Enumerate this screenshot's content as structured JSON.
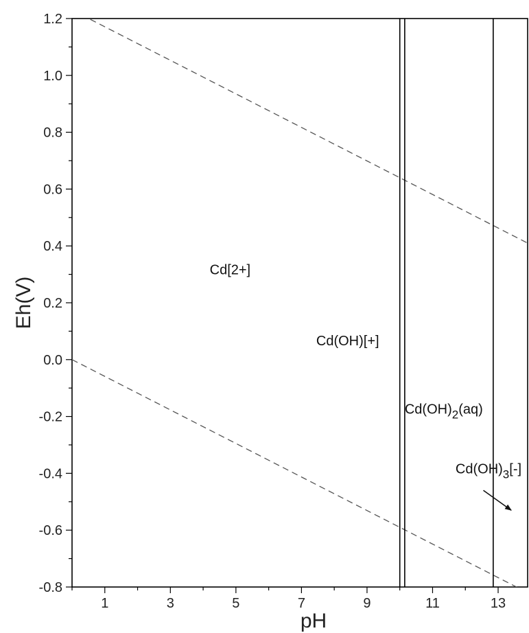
{
  "chart_data": {
    "type": "line",
    "title": "",
    "xlabel": "pH",
    "ylabel": "Eh(V)",
    "xlim": [
      0,
      13.9
    ],
    "ylim": [
      -0.8,
      1.2
    ],
    "xticks": [
      1,
      3,
      5,
      7,
      9,
      11,
      13
    ],
    "yticks": [
      1.2,
      1.0,
      0.8,
      0.6,
      0.4,
      0.2,
      0.0,
      -0.2,
      -0.4,
      -0.6,
      -0.8
    ],
    "ytick_labels": [
      "1.2",
      "1.0",
      "0.8",
      "0.6",
      "0.4",
      "0.2",
      "0.0",
      "-0.2",
      "-0.4",
      "-0.6",
      "-0.8"
    ],
    "grid": false,
    "series": [
      {
        "style": "dashed",
        "color": "#555555",
        "x": [
          0,
          13.9
        ],
        "y": [
          1.23,
          0.41
        ]
      },
      {
        "style": "dashed",
        "color": "#555555",
        "x": [
          0,
          13.9
        ],
        "y": [
          0.0,
          -0.82
        ]
      }
    ],
    "vertical_lines": [
      {
        "x": 10.0,
        "color": "#000000"
      },
      {
        "x": 10.15,
        "color": "#000000"
      },
      {
        "x": 12.85,
        "color": "#000000"
      }
    ],
    "regions": [
      {
        "main": "Cd[2+]",
        "sub": "",
        "tail": "",
        "x": 4.2,
        "y": 0.3
      },
      {
        "main": "Cd(OH)[+]",
        "sub": "",
        "tail": "",
        "x": 7.45,
        "y": 0.05
      },
      {
        "main": "Cd(OH)",
        "sub": "2",
        "tail": "(aq)",
        "x": 10.15,
        "y": -0.19
      },
      {
        "main": "Cd(OH)",
        "sub": "3",
        "tail": "[-]",
        "x": 11.7,
        "y": -0.4
      }
    ],
    "arrow": {
      "from": [
        12.55,
        -0.46
      ],
      "to": [
        13.4,
        -0.53
      ]
    }
  }
}
